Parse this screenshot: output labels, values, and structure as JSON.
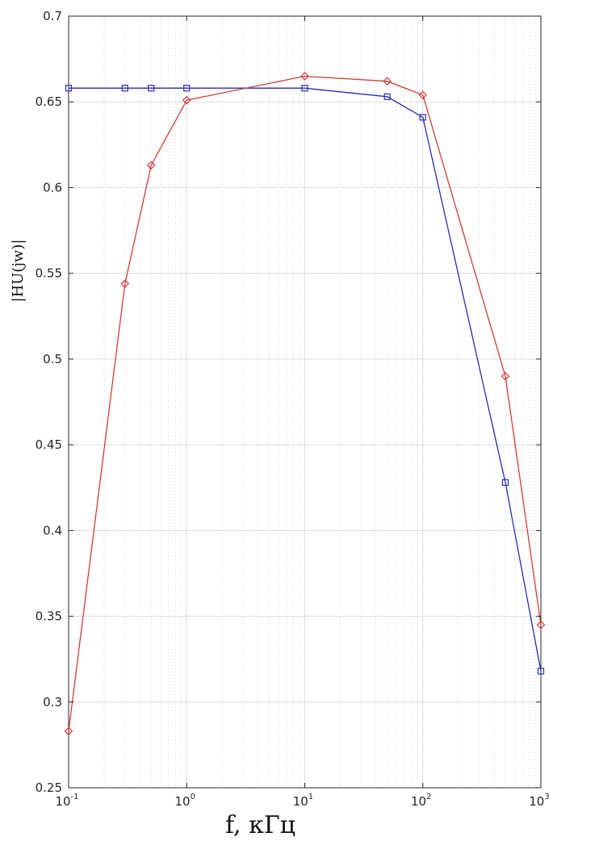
{
  "chart_data": {
    "type": "line",
    "title": "",
    "xlabel": "f, кГц",
    "ylabel": "|HU(jw)|",
    "x_scale": "log",
    "xlim": [
      0.1,
      1000
    ],
    "ylim": [
      0.25,
      0.7
    ],
    "grid": true,
    "minor_grid": true,
    "legend": "none",
    "x_ticks": [
      {
        "base": "10",
        "exp": "-1"
      },
      {
        "base": "10",
        "exp": "0"
      },
      {
        "base": "10",
        "exp": "1"
      },
      {
        "base": "10",
        "exp": "2"
      },
      {
        "base": "10",
        "exp": "3"
      }
    ],
    "y_ticks": [
      "0.25",
      "0.3",
      "0.35",
      "0.4",
      "0.45",
      "0.5",
      "0.55",
      "0.6",
      "0.65",
      "0.7"
    ],
    "series": [
      {
        "color": "#2b2bb8",
        "marker": "square",
        "x": [
          0.1,
          0.3,
          0.5,
          1,
          10,
          50,
          100,
          500,
          1000
        ],
        "y": [
          0.658,
          0.658,
          0.658,
          0.658,
          0.658,
          0.653,
          0.641,
          0.428,
          0.318
        ]
      },
      {
        "color": "#d43a3a",
        "marker": "diamond",
        "x": [
          0.1,
          0.3,
          0.5,
          1,
          10,
          50,
          100,
          500,
          1000
        ],
        "y": [
          0.283,
          0.544,
          0.613,
          0.651,
          0.665,
          0.662,
          0.654,
          0.49,
          0.345
        ]
      }
    ]
  }
}
